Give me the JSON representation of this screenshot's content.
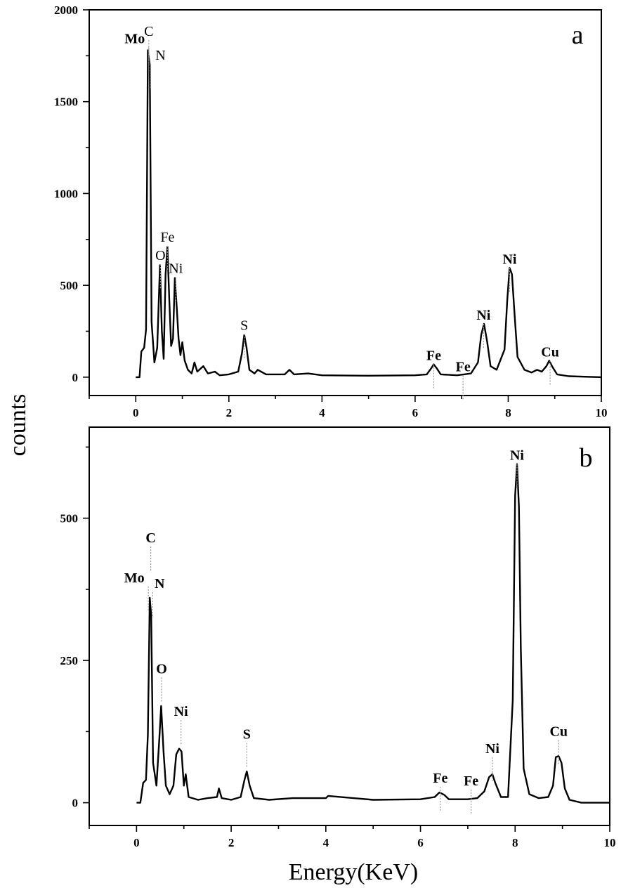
{
  "figure": {
    "ylabel": "counts",
    "xlabel": "Energy(KeV)"
  },
  "chart_data": [
    {
      "type": "line",
      "panel_label": "a",
      "xlabel": "Energy(KeV)",
      "ylabel": "counts",
      "xlim": [
        -1,
        10
      ],
      "ylim": [
        -100,
        2000
      ],
      "xticks": [
        0,
        2,
        4,
        6,
        8,
        10
      ],
      "yticks": [
        0,
        500,
        1000,
        1500,
        2000
      ],
      "grid": false,
      "spectrum": [
        [
          0,
          0
        ],
        [
          0.08,
          0
        ],
        [
          0.12,
          140
        ],
        [
          0.18,
          160
        ],
        [
          0.22,
          260
        ],
        [
          0.26,
          1780
        ],
        [
          0.3,
          1700
        ],
        [
          0.34,
          300
        ],
        [
          0.4,
          80
        ],
        [
          0.46,
          160
        ],
        [
          0.52,
          610
        ],
        [
          0.56,
          250
        ],
        [
          0.6,
          100
        ],
        [
          0.64,
          560
        ],
        [
          0.68,
          710
        ],
        [
          0.72,
          420
        ],
        [
          0.76,
          170
        ],
        [
          0.8,
          210
        ],
        [
          0.84,
          540
        ],
        [
          0.88,
          380
        ],
        [
          0.92,
          210
        ],
        [
          0.96,
          120
        ],
        [
          1.0,
          190
        ],
        [
          1.05,
          90
        ],
        [
          1.12,
          40
        ],
        [
          1.2,
          20
        ],
        [
          1.26,
          80
        ],
        [
          1.32,
          30
        ],
        [
          1.45,
          60
        ],
        [
          1.55,
          20
        ],
        [
          1.7,
          30
        ],
        [
          1.8,
          10
        ],
        [
          2.0,
          15
        ],
        [
          2.2,
          30
        ],
        [
          2.28,
          130
        ],
        [
          2.33,
          230
        ],
        [
          2.38,
          160
        ],
        [
          2.44,
          40
        ],
        [
          2.55,
          20
        ],
        [
          2.62,
          40
        ],
        [
          2.8,
          15
        ],
        [
          3.2,
          15
        ],
        [
          3.3,
          40
        ],
        [
          3.4,
          15
        ],
        [
          3.7,
          20
        ],
        [
          4.0,
          10
        ],
        [
          5.0,
          8
        ],
        [
          6.0,
          10
        ],
        [
          6.25,
          15
        ],
        [
          6.35,
          50
        ],
        [
          6.4,
          70
        ],
        [
          6.46,
          50
        ],
        [
          6.55,
          15
        ],
        [
          6.9,
          10
        ],
        [
          7.05,
          15
        ],
        [
          7.2,
          20
        ],
        [
          7.35,
          80
        ],
        [
          7.42,
          230
        ],
        [
          7.48,
          290
        ],
        [
          7.55,
          190
        ],
        [
          7.62,
          60
        ],
        [
          7.75,
          40
        ],
        [
          7.92,
          150
        ],
        [
          7.98,
          420
        ],
        [
          8.03,
          595
        ],
        [
          8.08,
          560
        ],
        [
          8.14,
          330
        ],
        [
          8.2,
          110
        ],
        [
          8.35,
          40
        ],
        [
          8.5,
          25
        ],
        [
          8.62,
          40
        ],
        [
          8.72,
          30
        ],
        [
          8.82,
          60
        ],
        [
          8.88,
          90
        ],
        [
          8.94,
          60
        ],
        [
          9.05,
          15
        ],
        [
          9.3,
          5
        ],
        [
          10.0,
          0
        ]
      ],
      "peak_labels": [
        {
          "text": "Mo",
          "x": 0.28,
          "y": 1810,
          "bold": true
        },
        {
          "text": "C",
          "x": 0.28,
          "y": 1850,
          "bold": false
        },
        {
          "text": "N",
          "x": 0.32,
          "y": 1720,
          "bold": false
        },
        {
          "text": "O",
          "x": 0.53,
          "y": 630,
          "bold": false
        },
        {
          "text": "Fe",
          "x": 0.68,
          "y": 730,
          "bold": false
        },
        {
          "text": "Ni",
          "x": 0.86,
          "y": 560,
          "bold": false
        },
        {
          "text": "S",
          "x": 2.33,
          "y": 250,
          "bold": false
        },
        {
          "text": "Fe",
          "x": 6.4,
          "y": 85,
          "bold": true
        },
        {
          "text": "Fe",
          "x": 7.03,
          "y": 25,
          "bold": true
        },
        {
          "text": "Ni",
          "x": 7.47,
          "y": 305,
          "bold": true
        },
        {
          "text": "Ni",
          "x": 8.03,
          "y": 610,
          "bold": true
        },
        {
          "text": "Cu",
          "x": 8.9,
          "y": 105,
          "bold": true
        }
      ]
    },
    {
      "type": "line",
      "panel_label": "b",
      "xlabel": "Energy(KeV)",
      "ylabel": "counts",
      "xlim": [
        -1,
        10
      ],
      "ylim": [
        -40,
        660
      ],
      "xticks": [
        0,
        2,
        4,
        6,
        8,
        10
      ],
      "yticks": [
        0,
        250,
        500
      ],
      "grid": false,
      "spectrum": [
        [
          0,
          0
        ],
        [
          0.08,
          0
        ],
        [
          0.14,
          35
        ],
        [
          0.2,
          40
        ],
        [
          0.24,
          120
        ],
        [
          0.28,
          360
        ],
        [
          0.31,
          330
        ],
        [
          0.35,
          70
        ],
        [
          0.42,
          30
        ],
        [
          0.48,
          110
        ],
        [
          0.52,
          170
        ],
        [
          0.57,
          90
        ],
        [
          0.62,
          30
        ],
        [
          0.7,
          15
        ],
        [
          0.78,
          30
        ],
        [
          0.84,
          85
        ],
        [
          0.9,
          95
        ],
        [
          0.95,
          90
        ],
        [
          1.0,
          30
        ],
        [
          1.04,
          50
        ],
        [
          1.1,
          10
        ],
        [
          1.3,
          5
        ],
        [
          1.5,
          8
        ],
        [
          1.7,
          10
        ],
        [
          1.74,
          25
        ],
        [
          1.8,
          8
        ],
        [
          2.0,
          5
        ],
        [
          2.2,
          10
        ],
        [
          2.28,
          40
        ],
        [
          2.33,
          55
        ],
        [
          2.39,
          30
        ],
        [
          2.48,
          8
        ],
        [
          2.8,
          5
        ],
        [
          3.3,
          8
        ],
        [
          4.0,
          8
        ],
        [
          4.05,
          12
        ],
        [
          5.0,
          5
        ],
        [
          6.0,
          6
        ],
        [
          6.3,
          10
        ],
        [
          6.4,
          18
        ],
        [
          6.5,
          14
        ],
        [
          6.6,
          6
        ],
        [
          7.0,
          6
        ],
        [
          7.2,
          8
        ],
        [
          7.35,
          20
        ],
        [
          7.45,
          45
        ],
        [
          7.52,
          50
        ],
        [
          7.58,
          35
        ],
        [
          7.7,
          10
        ],
        [
          7.85,
          10
        ],
        [
          7.95,
          180
        ],
        [
          8.0,
          540
        ],
        [
          8.04,
          595
        ],
        [
          8.08,
          520
        ],
        [
          8.12,
          270
        ],
        [
          8.18,
          60
        ],
        [
          8.3,
          15
        ],
        [
          8.5,
          8
        ],
        [
          8.7,
          10
        ],
        [
          8.8,
          30
        ],
        [
          8.86,
          80
        ],
        [
          8.92,
          82
        ],
        [
          8.98,
          70
        ],
        [
          9.05,
          25
        ],
        [
          9.15,
          5
        ],
        [
          9.4,
          0
        ],
        [
          10.0,
          0
        ]
      ],
      "peak_labels": [
        {
          "text": "C",
          "x": 0.3,
          "y": 455,
          "bold": true
        },
        {
          "text": "Mo",
          "x": 0.25,
          "y": 385,
          "bold": true
        },
        {
          "text": "N",
          "x": 0.34,
          "y": 375,
          "bold": true
        },
        {
          "text": "O",
          "x": 0.53,
          "y": 225,
          "bold": true
        },
        {
          "text": "Ni",
          "x": 0.94,
          "y": 150,
          "bold": true
        },
        {
          "text": "S",
          "x": 2.33,
          "y": 110,
          "bold": true
        },
        {
          "text": "Fe",
          "x": 6.42,
          "y": 33,
          "bold": true
        },
        {
          "text": "Fe",
          "x": 7.07,
          "y": 28,
          "bold": true
        },
        {
          "text": "Ni",
          "x": 7.52,
          "y": 85,
          "bold": true
        },
        {
          "text": "Ni",
          "x": 8.04,
          "y": 600,
          "bold": true
        },
        {
          "text": "Cu",
          "x": 8.92,
          "y": 115,
          "bold": true
        }
      ]
    }
  ]
}
